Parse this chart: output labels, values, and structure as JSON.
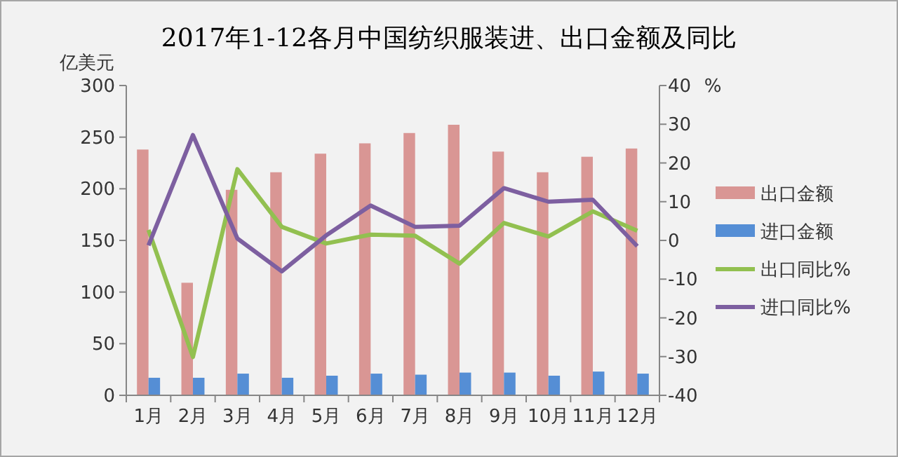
{
  "chart_data": {
    "type": "bar",
    "title": "2017年1-12各月中国纺织服装进、出口金额及同比",
    "ylabel": "亿美元",
    "y2label": "%",
    "categories": [
      "1月",
      "2月",
      "3月",
      "4月",
      "5月",
      "6月",
      "7月",
      "8月",
      "9月",
      "10月",
      "11月",
      "12月"
    ],
    "series": [
      {
        "name": "出口金额",
        "color": "#d99694",
        "values": [
          238,
          109,
          199,
          216,
          234,
          244,
          254,
          262,
          236,
          216,
          231,
          239
        ]
      },
      {
        "name": "进口金额",
        "color": "#558ed5",
        "values": [
          17,
          17,
          21,
          17,
          19,
          21,
          20,
          22,
          22,
          19,
          23,
          21
        ]
      },
      {
        "name": "出口同比%",
        "type": "line",
        "axis": "y2",
        "color": "#92c050",
        "values": [
          2.7,
          -30.1,
          18.4,
          3.5,
          -0.8,
          1.5,
          1.2,
          -6,
          4.5,
          1,
          7.5,
          2.5
        ]
      },
      {
        "name": "进口同比%",
        "type": "line",
        "axis": "y2",
        "color": "#7d5fa0",
        "values": [
          -1.3,
          27.2,
          0.5,
          -8,
          1.3,
          9,
          3.5,
          3.8,
          13.5,
          10,
          10.5,
          -1.5
        ]
      }
    ],
    "ylim": [
      0,
      300
    ],
    "yticks": [
      0,
      50,
      100,
      150,
      200,
      250,
      300
    ],
    "y2lim": [
      -40,
      40
    ],
    "y2ticks": [
      -40,
      -30,
      -20,
      -10,
      0,
      10,
      20,
      30,
      40
    ],
    "legend": "right",
    "grid": false
  }
}
